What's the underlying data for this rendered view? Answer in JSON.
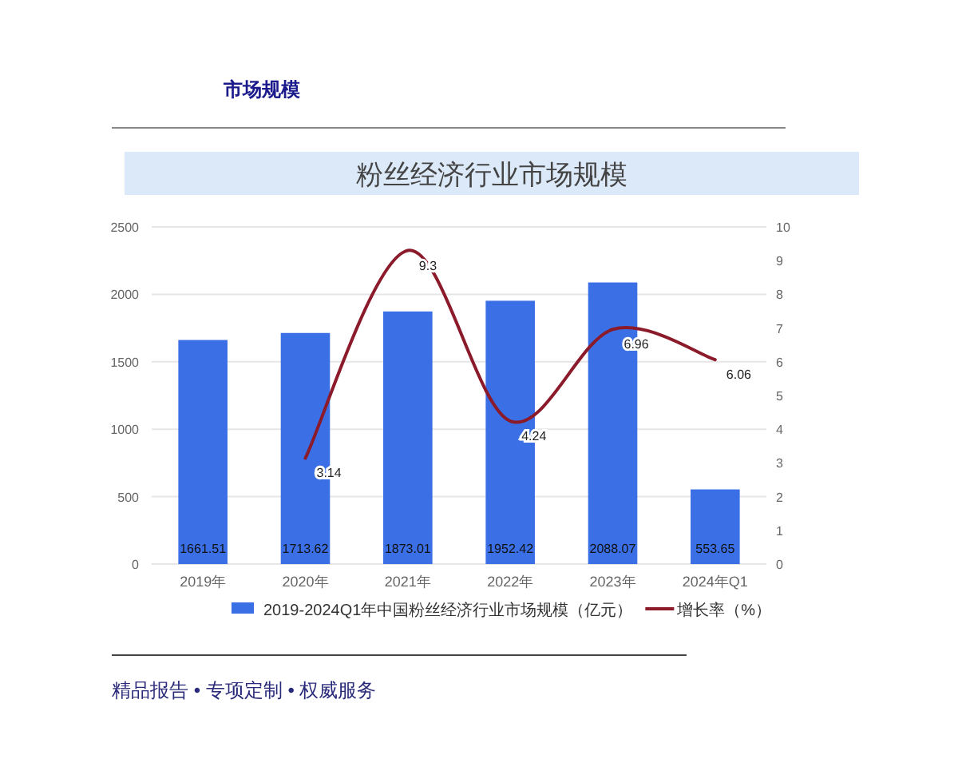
{
  "chart_data": {
    "type": "bar",
    "title": "粉丝经济行业市场规模",
    "categories": [
      "2019年",
      "2020年",
      "2021年",
      "2022年",
      "2023年",
      "2024年Q1"
    ],
    "series": [
      {
        "name": "2019-2024Q1年中国粉丝经济行业市场规模（亿元）",
        "color": "#3b6fe6",
        "values": [
          1661.51,
          1713.62,
          1873.01,
          1952.42,
          2088.07,
          553.65
        ]
      },
      {
        "name": "增长率（%）",
        "type": "line",
        "axis": "y2",
        "color": "#8b1a2a",
        "values": [
          null,
          3.14,
          9.3,
          4.24,
          6.96,
          6.06
        ]
      }
    ],
    "ylim": [
      0,
      2500
    ],
    "yticks": [
      0,
      500,
      1000,
      1500,
      2000,
      2500
    ],
    "y2lim": [
      0,
      10
    ],
    "y2ticks": [
      0,
      1,
      2,
      3,
      4,
      5,
      6,
      7,
      8,
      9,
      10
    ],
    "grid": "y",
    "legend": "bottom",
    "data_labels": true,
    "annotations": [
      "市场规模",
      "精品报告 • 专项定制 • 权威服务"
    ]
  }
}
